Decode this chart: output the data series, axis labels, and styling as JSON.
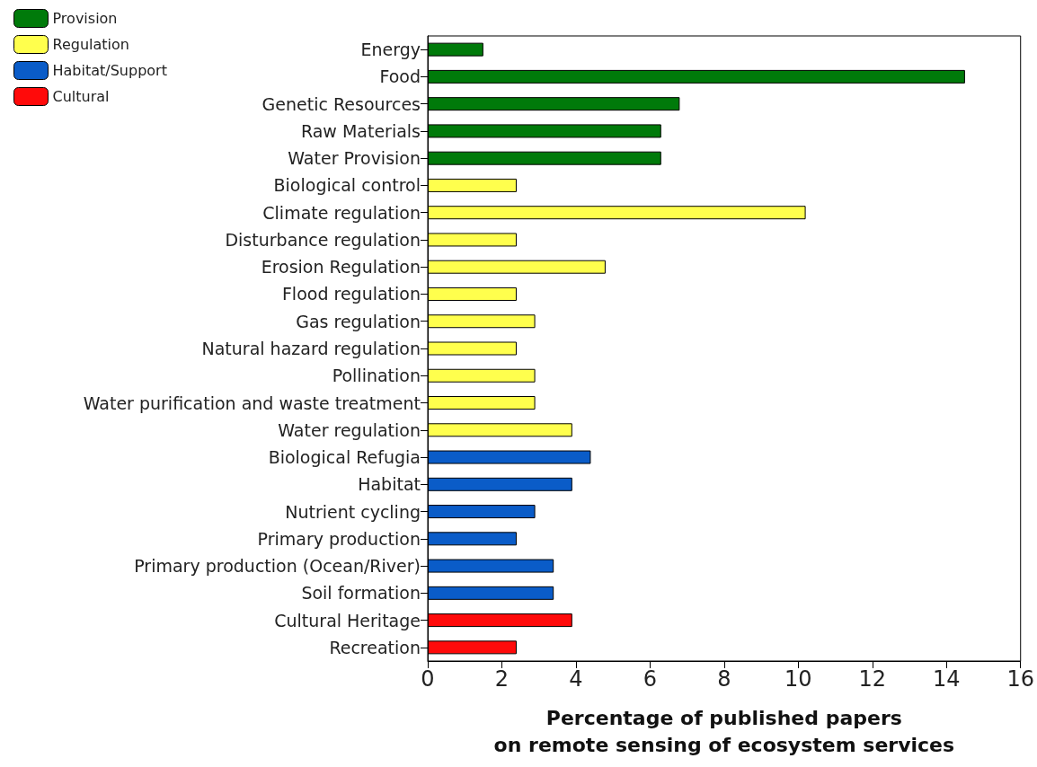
{
  "chart_data": {
    "type": "bar",
    "orientation": "horizontal",
    "xlabel": "Percentage of published papers\non remote sensing of ecosystem services",
    "categories": [
      "Energy",
      "Food",
      "Genetic Resources",
      "Raw Materials",
      "Water Provision",
      "Biological control",
      "Climate regulation",
      "Disturbance regulation",
      "Erosion Regulation",
      "Flood regulation",
      "Gas regulation",
      "Natural hazard regulation",
      "Pollination",
      "Water purification and waste treatment",
      "Water regulation",
      "Biological Refugia",
      "Habitat",
      "Nutrient cycling",
      "Primary production",
      "Primary production (Ocean/River)",
      "Soil formation",
      "Cultural Heritage",
      "Recreation"
    ],
    "series": [
      {
        "name": "Provision",
        "color": "#007a0a",
        "values": [
          1.5,
          14.5,
          6.8,
          6.3,
          6.3,
          null,
          null,
          null,
          null,
          null,
          null,
          null,
          null,
          null,
          null,
          null,
          null,
          null,
          null,
          null,
          null,
          null,
          null
        ]
      },
      {
        "name": "Regulation",
        "color": "#ffff4d",
        "values": [
          null,
          null,
          null,
          null,
          null,
          2.4,
          10.2,
          2.4,
          4.8,
          2.4,
          2.9,
          2.4,
          2.9,
          2.9,
          3.9,
          null,
          null,
          null,
          null,
          null,
          null,
          null,
          null
        ]
      },
      {
        "name": "Habitat/Support",
        "color": "#0a5cc8",
        "values": [
          null,
          null,
          null,
          null,
          null,
          null,
          null,
          null,
          null,
          null,
          null,
          null,
          null,
          null,
          null,
          4.4,
          3.9,
          2.9,
          2.4,
          3.4,
          3.4,
          null,
          null
        ]
      },
      {
        "name": "Cultural",
        "color": "#ff0a0a",
        "values": [
          null,
          null,
          null,
          null,
          null,
          null,
          null,
          null,
          null,
          null,
          null,
          null,
          null,
          null,
          null,
          null,
          null,
          null,
          null,
          null,
          null,
          3.9,
          2.4
        ]
      }
    ],
    "xlim": [
      0,
      16
    ],
    "xticks": [
      0,
      2,
      4,
      6,
      8,
      10,
      12,
      14,
      16
    ],
    "grid": false,
    "legend": "top left"
  }
}
